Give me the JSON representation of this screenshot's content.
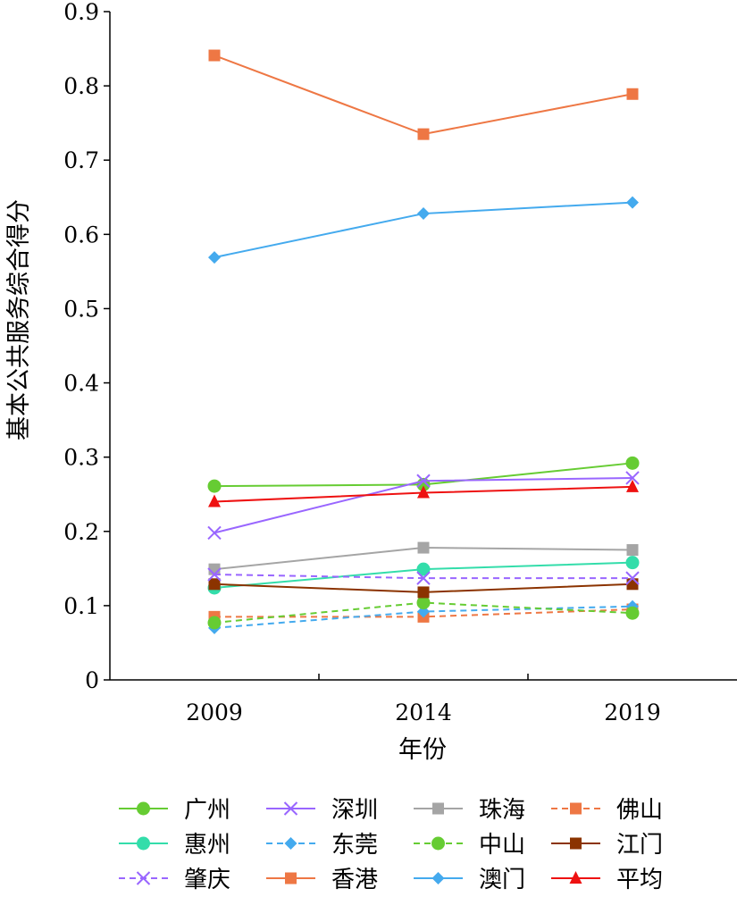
{
  "chart_data": {
    "type": "line",
    "title": "",
    "xlabel": "年份",
    "ylabel": "基本公共服务综合得分",
    "categories": [
      "2009",
      "2014",
      "2019"
    ],
    "ylim": [
      0,
      0.9
    ],
    "yticks": [
      "0",
      "0.1",
      "0.2",
      "0.3",
      "0.4",
      "0.5",
      "0.6",
      "0.7",
      "0.8",
      "0.9"
    ],
    "grid": false,
    "legend_position": "bottom",
    "series": [
      {
        "name": "广州",
        "values": [
          0.261,
          0.263,
          0.292
        ],
        "color": "#66cc33",
        "marker": "circle",
        "dash": false
      },
      {
        "name": "深圳",
        "values": [
          0.198,
          0.268,
          0.272
        ],
        "color": "#9966ff",
        "marker": "x",
        "dash": false
      },
      {
        "name": "珠海",
        "values": [
          0.149,
          0.178,
          0.175
        ],
        "color": "#a5a5a5",
        "marker": "square",
        "dash": false
      },
      {
        "name": "佛山",
        "values": [
          0.085,
          0.085,
          0.095
        ],
        "color": "#ee7744",
        "marker": "square",
        "dash": true
      },
      {
        "name": "惠州",
        "values": [
          0.124,
          0.149,
          0.158
        ],
        "color": "#33ddaa",
        "marker": "circle",
        "dash": false
      },
      {
        "name": "东莞",
        "values": [
          0.07,
          0.092,
          0.099
        ],
        "color": "#44aaee",
        "marker": "diamond",
        "dash": true
      },
      {
        "name": "中山",
        "values": [
          0.077,
          0.104,
          0.09
        ],
        "color": "#66cc33",
        "marker": "circle",
        "dash": true
      },
      {
        "name": "江门",
        "values": [
          0.129,
          0.118,
          0.129
        ],
        "color": "#8b3300",
        "marker": "square",
        "dash": false
      },
      {
        "name": "肇庆",
        "values": [
          0.142,
          0.137,
          0.137
        ],
        "color": "#9966ff",
        "marker": "x",
        "dash": true
      },
      {
        "name": "香港",
        "values": [
          0.841,
          0.735,
          0.789
        ],
        "color": "#ee7744",
        "marker": "square",
        "dash": false
      },
      {
        "name": "澳门",
        "values": [
          0.569,
          0.628,
          0.643
        ],
        "color": "#44aaee",
        "marker": "diamond",
        "dash": false
      },
      {
        "name": "平均",
        "values": [
          0.24,
          0.252,
          0.26
        ],
        "color": "#ee1111",
        "marker": "triangle",
        "dash": false
      }
    ]
  }
}
